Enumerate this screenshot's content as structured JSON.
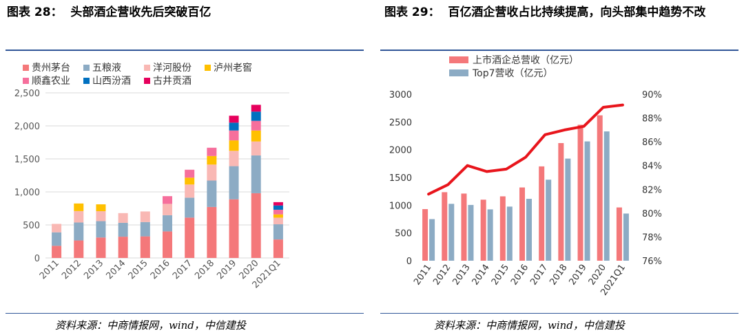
{
  "left": {
    "title_prefix": "图表 28：",
    "title_text": "头部酒企营收先后突破百亿",
    "source": "资料来源：中商情报网，wind，中信建投"
  },
  "right": {
    "title_prefix": "图表 29：",
    "title_text": "百亿酒企营收占比持续提高，向头部集中趋势不改",
    "source": "资料来源：中商情报网，wind，中信建投"
  },
  "chart_data": [
    {
      "type": "bar",
      "stacked": true,
      "categories": [
        "2011",
        "2012",
        "2013",
        "2014",
        "2015",
        "2016",
        "2017",
        "2018",
        "2019",
        "2020",
        "2021Q1"
      ],
      "series": [
        {
          "name": "贵州茅台",
          "color": "#f4787a",
          "values": [
            184,
            265,
            310,
            322,
            327,
            402,
            611,
            772,
            888,
            980,
            280
          ]
        },
        {
          "name": "五粮液",
          "color": "#8cabc4",
          "values": [
            204,
            272,
            247,
            210,
            217,
            245,
            302,
            400,
            502,
            573,
            230
          ]
        },
        {
          "name": "洋河股份",
          "color": "#f9b8b4",
          "values": [
            128,
            173,
            151,
            147,
            160,
            172,
            199,
            242,
            232,
            211,
            100
          ]
        },
        {
          "name": "泸州老窖",
          "color": "#ffc000",
          "values": [
            0,
            115,
            104,
            0,
            0,
            0,
            104,
            130,
            158,
            166,
            50
          ]
        },
        {
          "name": "顺鑫农业",
          "color": "#f66f9c",
          "values": [
            0,
            0,
            0,
            0,
            0,
            117,
            120,
            125,
            150,
            146,
            70
          ]
        },
        {
          "name": "山西汾酒",
          "color": "#0070c0",
          "values": [
            0,
            0,
            0,
            0,
            0,
            0,
            0,
            0,
            119,
            140,
            65
          ]
        },
        {
          "name": "古井贡酒",
          "color": "#e6005c",
          "values": [
            0,
            0,
            0,
            0,
            0,
            0,
            0,
            0,
            105,
            103,
            50
          ]
        }
      ],
      "ylim": [
        0,
        2500
      ],
      "yticks": [
        "0",
        "500",
        "1,000",
        "1,500",
        "2,000",
        "2,500"
      ],
      "grid": true,
      "legend": "top"
    },
    {
      "type": "bar+line",
      "categories": [
        "2011",
        "2012",
        "2013",
        "2014",
        "2015",
        "2016",
        "2017",
        "2018",
        "2019",
        "2020",
        "2021Q1"
      ],
      "series": [
        {
          "name": "上市酒企总营收（亿元）",
          "axis": "left",
          "color": "#f4787a",
          "values": [
            930,
            1235,
            1210,
            1100,
            1160,
            1320,
            1700,
            2120,
            2450,
            2620,
            960
          ]
        },
        {
          "name": "Top7营收（亿元）",
          "axis": "left",
          "color": "#8cabc4",
          "values": [
            750,
            1025,
            1005,
            925,
            975,
            1115,
            1460,
            1840,
            2150,
            2330,
            850
          ]
        },
        {
          "name": "",
          "type": "line",
          "axis": "right",
          "color": "#e8151c",
          "values": [
            81.6,
            82.4,
            84.0,
            83.5,
            83.7,
            84.7,
            86.6,
            87.0,
            87.3,
            88.9,
            89.1
          ]
        }
      ],
      "ylim": [
        0,
        3000
      ],
      "y2lim": [
        76,
        90
      ],
      "yticks": [
        "0",
        "500",
        "1000",
        "1500",
        "2000",
        "2500",
        "3000"
      ],
      "y2ticks": [
        "76%",
        "78%",
        "80%",
        "82%",
        "84%",
        "86%",
        "88%",
        "90%"
      ],
      "grid": false,
      "legend": "top-left"
    }
  ]
}
